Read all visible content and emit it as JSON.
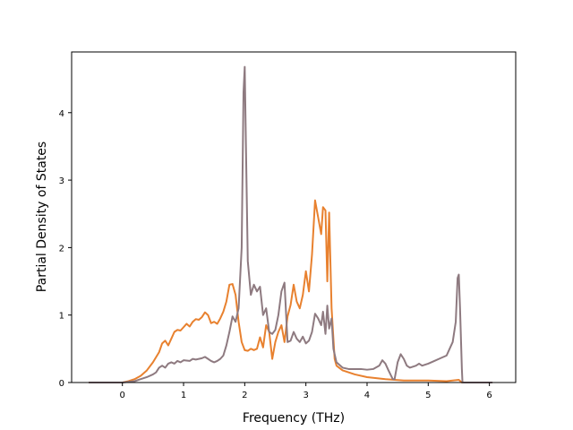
{
  "chart_data": {
    "type": "line",
    "title": "",
    "xlabel": "Frequency (THz)",
    "ylabel": "Partial Density of States",
    "xlim": [
      -0.83,
      6.43
    ],
    "ylim": [
      0,
      4.9
    ],
    "x_ticks": [
      0,
      1,
      2,
      3,
      4,
      5,
      6
    ],
    "y_ticks": [
      0,
      1,
      2,
      3,
      4
    ],
    "grid": false,
    "legend": "none",
    "series": [
      {
        "color": "#e8812f",
        "points": [
          [
            -0.55,
            0
          ],
          [
            0.0,
            0.0
          ],
          [
            0.1,
            0.02
          ],
          [
            0.2,
            0.05
          ],
          [
            0.3,
            0.1
          ],
          [
            0.4,
            0.18
          ],
          [
            0.5,
            0.3
          ],
          [
            0.6,
            0.45
          ],
          [
            0.65,
            0.58
          ],
          [
            0.7,
            0.62
          ],
          [
            0.75,
            0.55
          ],
          [
            0.8,
            0.65
          ],
          [
            0.85,
            0.75
          ],
          [
            0.9,
            0.78
          ],
          [
            0.95,
            0.77
          ],
          [
            1.0,
            0.82
          ],
          [
            1.05,
            0.87
          ],
          [
            1.1,
            0.83
          ],
          [
            1.15,
            0.9
          ],
          [
            1.2,
            0.94
          ],
          [
            1.25,
            0.93
          ],
          [
            1.3,
            0.97
          ],
          [
            1.35,
            1.04
          ],
          [
            1.4,
            1.0
          ],
          [
            1.45,
            0.88
          ],
          [
            1.5,
            0.9
          ],
          [
            1.55,
            0.87
          ],
          [
            1.6,
            0.95
          ],
          [
            1.65,
            1.05
          ],
          [
            1.7,
            1.2
          ],
          [
            1.75,
            1.45
          ],
          [
            1.8,
            1.46
          ],
          [
            1.85,
            1.3
          ],
          [
            1.9,
            0.9
          ],
          [
            1.95,
            0.6
          ],
          [
            2.0,
            0.48
          ],
          [
            2.05,
            0.47
          ],
          [
            2.1,
            0.5
          ],
          [
            2.15,
            0.48
          ],
          [
            2.2,
            0.5
          ],
          [
            2.25,
            0.67
          ],
          [
            2.3,
            0.52
          ],
          [
            2.35,
            0.85
          ],
          [
            2.4,
            0.75
          ],
          [
            2.45,
            0.35
          ],
          [
            2.5,
            0.6
          ],
          [
            2.55,
            0.75
          ],
          [
            2.6,
            0.85
          ],
          [
            2.65,
            0.6
          ],
          [
            2.7,
            0.98
          ],
          [
            2.75,
            1.15
          ],
          [
            2.8,
            1.45
          ],
          [
            2.85,
            1.2
          ],
          [
            2.9,
            1.1
          ],
          [
            2.95,
            1.3
          ],
          [
            3.0,
            1.65
          ],
          [
            3.05,
            1.35
          ],
          [
            3.1,
            1.9
          ],
          [
            3.15,
            2.7
          ],
          [
            3.2,
            2.45
          ],
          [
            3.25,
            2.2
          ],
          [
            3.28,
            2.6
          ],
          [
            3.32,
            2.55
          ],
          [
            3.35,
            1.5
          ],
          [
            3.38,
            2.52
          ],
          [
            3.42,
            1.1
          ],
          [
            3.47,
            0.35
          ],
          [
            3.5,
            0.25
          ],
          [
            3.6,
            0.18
          ],
          [
            3.8,
            0.12
          ],
          [
            4.0,
            0.08
          ],
          [
            4.3,
            0.05
          ],
          [
            4.6,
            0.03
          ],
          [
            5.0,
            0.03
          ],
          [
            5.3,
            0.02
          ],
          [
            5.5,
            0.04
          ],
          [
            5.55,
            0
          ],
          [
            6.05,
            0
          ]
        ]
      },
      {
        "color": "#8e7a80",
        "points": [
          [
            -0.55,
            0
          ],
          [
            0.0,
            0.0
          ],
          [
            0.1,
            0.01
          ],
          [
            0.2,
            0.02
          ],
          [
            0.3,
            0.05
          ],
          [
            0.4,
            0.08
          ],
          [
            0.5,
            0.12
          ],
          [
            0.55,
            0.15
          ],
          [
            0.6,
            0.22
          ],
          [
            0.65,
            0.25
          ],
          [
            0.7,
            0.22
          ],
          [
            0.75,
            0.28
          ],
          [
            0.8,
            0.3
          ],
          [
            0.85,
            0.28
          ],
          [
            0.9,
            0.32
          ],
          [
            0.95,
            0.3
          ],
          [
            1.0,
            0.33
          ],
          [
            1.1,
            0.32
          ],
          [
            1.15,
            0.35
          ],
          [
            1.2,
            0.34
          ],
          [
            1.3,
            0.36
          ],
          [
            1.35,
            0.38
          ],
          [
            1.4,
            0.35
          ],
          [
            1.45,
            0.32
          ],
          [
            1.5,
            0.3
          ],
          [
            1.55,
            0.32
          ],
          [
            1.6,
            0.35
          ],
          [
            1.65,
            0.4
          ],
          [
            1.7,
            0.55
          ],
          [
            1.75,
            0.75
          ],
          [
            1.8,
            0.98
          ],
          [
            1.85,
            0.9
          ],
          [
            1.9,
            1.1
          ],
          [
            1.95,
            2.0
          ],
          [
            1.98,
            4.3
          ],
          [
            2.0,
            4.68
          ],
          [
            2.02,
            3.5
          ],
          [
            2.05,
            1.8
          ],
          [
            2.1,
            1.3
          ],
          [
            2.15,
            1.45
          ],
          [
            2.2,
            1.35
          ],
          [
            2.25,
            1.42
          ],
          [
            2.3,
            1.0
          ],
          [
            2.35,
            1.1
          ],
          [
            2.4,
            0.75
          ],
          [
            2.45,
            0.72
          ],
          [
            2.5,
            0.78
          ],
          [
            2.55,
            1.0
          ],
          [
            2.6,
            1.35
          ],
          [
            2.65,
            1.48
          ],
          [
            2.7,
            0.6
          ],
          [
            2.75,
            0.62
          ],
          [
            2.8,
            0.75
          ],
          [
            2.85,
            0.65
          ],
          [
            2.9,
            0.6
          ],
          [
            2.95,
            0.68
          ],
          [
            3.0,
            0.58
          ],
          [
            3.05,
            0.62
          ],
          [
            3.1,
            0.75
          ],
          [
            3.15,
            1.02
          ],
          [
            3.2,
            0.95
          ],
          [
            3.25,
            0.85
          ],
          [
            3.28,
            1.05
          ],
          [
            3.32,
            0.72
          ],
          [
            3.35,
            1.14
          ],
          [
            3.38,
            0.8
          ],
          [
            3.42,
            0.95
          ],
          [
            3.45,
            0.5
          ],
          [
            3.5,
            0.3
          ],
          [
            3.6,
            0.22
          ],
          [
            3.7,
            0.2
          ],
          [
            3.9,
            0.2
          ],
          [
            4.0,
            0.19
          ],
          [
            4.1,
            0.2
          ],
          [
            4.2,
            0.25
          ],
          [
            4.25,
            0.33
          ],
          [
            4.3,
            0.28
          ],
          [
            4.35,
            0.18
          ],
          [
            4.42,
            0.05
          ],
          [
            4.45,
            0.05
          ],
          [
            4.5,
            0.3
          ],
          [
            4.55,
            0.42
          ],
          [
            4.6,
            0.35
          ],
          [
            4.65,
            0.25
          ],
          [
            4.7,
            0.22
          ],
          [
            4.8,
            0.25
          ],
          [
            4.85,
            0.28
          ],
          [
            4.9,
            0.25
          ],
          [
            5.0,
            0.28
          ],
          [
            5.1,
            0.32
          ],
          [
            5.2,
            0.36
          ],
          [
            5.3,
            0.4
          ],
          [
            5.35,
            0.5
          ],
          [
            5.4,
            0.6
          ],
          [
            5.45,
            0.9
          ],
          [
            5.48,
            1.55
          ],
          [
            5.5,
            1.6
          ],
          [
            5.52,
            1.1
          ],
          [
            5.55,
            0.2
          ],
          [
            5.56,
            0
          ],
          [
            6.05,
            0
          ]
        ]
      }
    ]
  }
}
